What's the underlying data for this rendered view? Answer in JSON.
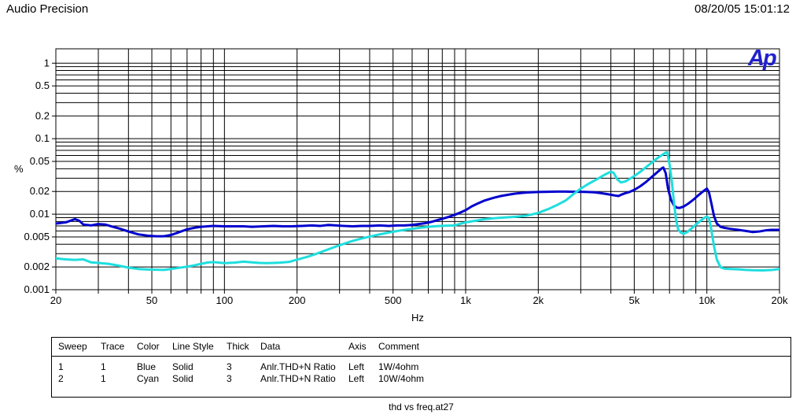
{
  "header": {
    "app_title": "Audio Precision",
    "timestamp": "08/20/05 15:01:12"
  },
  "logo": {
    "text": "Ap"
  },
  "footer": {
    "caption": "thd vs freq.at27"
  },
  "chart_data": {
    "type": "line",
    "title": "",
    "xlabel": "Hz",
    "ylabel": "%",
    "x_scale": "log",
    "y_scale": "log",
    "xlim": [
      20,
      20000
    ],
    "ylim": [
      0.001,
      1.55
    ],
    "grid": "log minor grid, both axes, black on white",
    "legend_position": "table below chart",
    "x_ticks": [
      {
        "v": 20,
        "label": "20"
      },
      {
        "v": 50,
        "label": "50"
      },
      {
        "v": 100,
        "label": "100"
      },
      {
        "v": 200,
        "label": "200"
      },
      {
        "v": 500,
        "label": "500"
      },
      {
        "v": 1000,
        "label": "1k"
      },
      {
        "v": 2000,
        "label": "2k"
      },
      {
        "v": 5000,
        "label": "5k"
      },
      {
        "v": 10000,
        "label": "10k"
      },
      {
        "v": 20000,
        "label": "20k"
      }
    ],
    "y_ticks": [
      {
        "v": 1,
        "label": "1"
      },
      {
        "v": 0.5,
        "label": "0.5"
      },
      {
        "v": 0.2,
        "label": "0.2"
      },
      {
        "v": 0.1,
        "label": "0.1"
      },
      {
        "v": 0.05,
        "label": "0.05"
      },
      {
        "v": 0.02,
        "label": "0.02"
      },
      {
        "v": 0.01,
        "label": "0.01"
      },
      {
        "v": 0.005,
        "label": "0.005"
      },
      {
        "v": 0.002,
        "label": "0.002"
      },
      {
        "v": 0.001,
        "label": "0.001"
      }
    ],
    "series": [
      {
        "name": "1W/4ohm",
        "color": "#0000cd",
        "thickness": 3,
        "points": [
          [
            20,
            0.0075
          ],
          [
            22,
            0.0078
          ],
          [
            24,
            0.0086
          ],
          [
            25,
            0.0082
          ],
          [
            26,
            0.0073
          ],
          [
            28,
            0.0071
          ],
          [
            30,
            0.0074
          ],
          [
            32,
            0.0073
          ],
          [
            34,
            0.0069
          ],
          [
            37,
            0.0064
          ],
          [
            40,
            0.0059
          ],
          [
            44,
            0.0054
          ],
          [
            48,
            0.0052
          ],
          [
            52,
            0.0051
          ],
          [
            56,
            0.0051
          ],
          [
            60,
            0.0053
          ],
          [
            65,
            0.0058
          ],
          [
            70,
            0.0063
          ],
          [
            75,
            0.0066
          ],
          [
            80,
            0.0068
          ],
          [
            85,
            0.0069
          ],
          [
            90,
            0.007
          ],
          [
            100,
            0.0069
          ],
          [
            110,
            0.0069
          ],
          [
            120,
            0.0069
          ],
          [
            130,
            0.0068
          ],
          [
            145,
            0.0069
          ],
          [
            160,
            0.007
          ],
          [
            175,
            0.0069
          ],
          [
            190,
            0.0069
          ],
          [
            210,
            0.007
          ],
          [
            230,
            0.0071
          ],
          [
            250,
            0.007
          ],
          [
            270,
            0.0072
          ],
          [
            290,
            0.0071
          ],
          [
            310,
            0.007
          ],
          [
            340,
            0.0069
          ],
          [
            370,
            0.007
          ],
          [
            400,
            0.007
          ],
          [
            440,
            0.0071
          ],
          [
            480,
            0.007
          ],
          [
            520,
            0.0071
          ],
          [
            560,
            0.0071
          ],
          [
            600,
            0.0072
          ],
          [
            640,
            0.0074
          ],
          [
            680,
            0.0076
          ],
          [
            720,
            0.0079
          ],
          [
            760,
            0.0083
          ],
          [
            800,
            0.0087
          ],
          [
            850,
            0.0092
          ],
          [
            900,
            0.0098
          ],
          [
            950,
            0.0105
          ],
          [
            1000,
            0.0113
          ],
          [
            1060,
            0.0127
          ],
          [
            1130,
            0.014
          ],
          [
            1200,
            0.0152
          ],
          [
            1300,
            0.0164
          ],
          [
            1400,
            0.0174
          ],
          [
            1500,
            0.0181
          ],
          [
            1600,
            0.0187
          ],
          [
            1700,
            0.0191
          ],
          [
            1800,
            0.0194
          ],
          [
            2000,
            0.0197
          ],
          [
            2200,
            0.0198
          ],
          [
            2400,
            0.0199
          ],
          [
            2600,
            0.0199
          ],
          [
            2800,
            0.0198
          ],
          [
            3000,
            0.0198
          ],
          [
            3200,
            0.0197
          ],
          [
            3400,
            0.0195
          ],
          [
            3600,
            0.0191
          ],
          [
            3800,
            0.0186
          ],
          [
            4000,
            0.0181
          ],
          [
            4150,
            0.0177
          ],
          [
            4300,
            0.0174
          ],
          [
            4450,
            0.0183
          ],
          [
            4600,
            0.019
          ],
          [
            4800,
            0.0198
          ],
          [
            5000,
            0.021
          ],
          [
            5300,
            0.0235
          ],
          [
            5600,
            0.0268
          ],
          [
            5900,
            0.031
          ],
          [
            6200,
            0.0355
          ],
          [
            6500,
            0.0405
          ],
          [
            6600,
            0.0415
          ],
          [
            6750,
            0.035
          ],
          [
            6900,
            0.022
          ],
          [
            7100,
            0.0155
          ],
          [
            7300,
            0.0131
          ],
          [
            7500,
            0.0122
          ],
          [
            7700,
            0.0121
          ],
          [
            8000,
            0.0126
          ],
          [
            8400,
            0.0139
          ],
          [
            8800,
            0.0156
          ],
          [
            9200,
            0.0177
          ],
          [
            9600,
            0.0198
          ],
          [
            10000,
            0.0218
          ],
          [
            10200,
            0.0196
          ],
          [
            10450,
            0.0137
          ],
          [
            10700,
            0.0095
          ],
          [
            11000,
            0.0075
          ],
          [
            11400,
            0.0068
          ],
          [
            11800,
            0.0066
          ],
          [
            12500,
            0.0064
          ],
          [
            13500,
            0.0062
          ],
          [
            14500,
            0.006
          ],
          [
            15500,
            0.0058
          ],
          [
            16500,
            0.0059
          ],
          [
            17500,
            0.0061
          ],
          [
            18500,
            0.0062
          ],
          [
            20000,
            0.0062
          ]
        ]
      },
      {
        "name": "10W/4ohm",
        "color": "#1edede",
        "thickness": 3,
        "points": [
          [
            20,
            0.0026
          ],
          [
            22,
            0.00252
          ],
          [
            24,
            0.00248
          ],
          [
            26,
            0.00252
          ],
          [
            28,
            0.0023
          ],
          [
            30,
            0.00226
          ],
          [
            33,
            0.0022
          ],
          [
            36,
            0.0021
          ],
          [
            40,
            0.00196
          ],
          [
            44,
            0.00188
          ],
          [
            48,
            0.00185
          ],
          [
            52,
            0.00184
          ],
          [
            56,
            0.00183
          ],
          [
            60,
            0.00188
          ],
          [
            65,
            0.00195
          ],
          [
            70,
            0.00202
          ],
          [
            75,
            0.0021
          ],
          [
            80,
            0.0022
          ],
          [
            85,
            0.00229
          ],
          [
            90,
            0.00232
          ],
          [
            95,
            0.00228
          ],
          [
            100,
            0.00225
          ],
          [
            110,
            0.00228
          ],
          [
            120,
            0.00235
          ],
          [
            130,
            0.0023
          ],
          [
            140,
            0.00226
          ],
          [
            150,
            0.00225
          ],
          [
            160,
            0.00226
          ],
          [
            170,
            0.00228
          ],
          [
            185,
            0.00233
          ],
          [
            200,
            0.0025
          ],
          [
            220,
            0.00272
          ],
          [
            240,
            0.00298
          ],
          [
            260,
            0.00328
          ],
          [
            280,
            0.00358
          ],
          [
            300,
            0.00388
          ],
          [
            330,
            0.0043
          ],
          [
            360,
            0.00465
          ],
          [
            400,
            0.00505
          ],
          [
            440,
            0.0054
          ],
          [
            480,
            0.00572
          ],
          [
            520,
            0.00598
          ],
          [
            560,
            0.0062
          ],
          [
            600,
            0.0064
          ],
          [
            650,
            0.00662
          ],
          [
            700,
            0.0068
          ],
          [
            750,
            0.00693
          ],
          [
            800,
            0.00702
          ],
          [
            850,
            0.00705
          ],
          [
            900,
            0.0071
          ],
          [
            1000,
            0.0078
          ],
          [
            1100,
            0.0082
          ],
          [
            1200,
            0.0086
          ],
          [
            1350,
            0.0089
          ],
          [
            1500,
            0.0091
          ],
          [
            1650,
            0.0093
          ],
          [
            1800,
            0.0096
          ],
          [
            2000,
            0.0104
          ],
          [
            2200,
            0.0117
          ],
          [
            2400,
            0.0133
          ],
          [
            2600,
            0.0152
          ],
          [
            2800,
            0.0185
          ],
          [
            3000,
            0.0218
          ],
          [
            3200,
            0.0248
          ],
          [
            3500,
            0.029
          ],
          [
            3800,
            0.0338
          ],
          [
            4000,
            0.0365
          ],
          [
            4100,
            0.0355
          ],
          [
            4250,
            0.029
          ],
          [
            4400,
            0.0263
          ],
          [
            4600,
            0.0272
          ],
          [
            4800,
            0.0295
          ],
          [
            5000,
            0.032
          ],
          [
            5300,
            0.0365
          ],
          [
            5600,
            0.042
          ],
          [
            5900,
            0.048
          ],
          [
            6200,
            0.0545
          ],
          [
            6500,
            0.0605
          ],
          [
            6750,
            0.0655
          ],
          [
            6850,
            0.066
          ],
          [
            7000,
            0.046
          ],
          [
            7150,
            0.028
          ],
          [
            7300,
            0.0145
          ],
          [
            7450,
            0.0085
          ],
          [
            7600,
            0.0063
          ],
          [
            7800,
            0.0057
          ],
          [
            8000,
            0.0055
          ],
          [
            8300,
            0.0058
          ],
          [
            8700,
            0.0066
          ],
          [
            9100,
            0.0075
          ],
          [
            9500,
            0.0084
          ],
          [
            9800,
            0.009
          ],
          [
            10000,
            0.0093
          ],
          [
            10200,
            0.0089
          ],
          [
            10400,
            0.0066
          ],
          [
            10700,
            0.0038
          ],
          [
            11000,
            0.0025
          ],
          [
            11400,
            0.00198
          ],
          [
            11800,
            0.0019
          ],
          [
            12500,
            0.00188
          ],
          [
            13500,
            0.00186
          ],
          [
            14500,
            0.00183
          ],
          [
            15500,
            0.00181
          ],
          [
            17000,
            0.0018
          ],
          [
            18500,
            0.00182
          ],
          [
            20000,
            0.00188
          ]
        ]
      }
    ]
  },
  "legend_table": {
    "columns": [
      "Sweep",
      "Trace",
      "Color",
      "Line Style",
      "Thick",
      "Data",
      "Axis",
      "Comment"
    ],
    "rows": [
      [
        "1",
        "1",
        "Blue",
        "Solid",
        "3",
        "Anlr.THD+N Ratio",
        "Left",
        "1W/4ohm"
      ],
      [
        "2",
        "1",
        "Cyan",
        "Solid",
        "3",
        "Anlr.THD+N Ratio",
        "Left",
        "10W/4ohm"
      ]
    ]
  }
}
